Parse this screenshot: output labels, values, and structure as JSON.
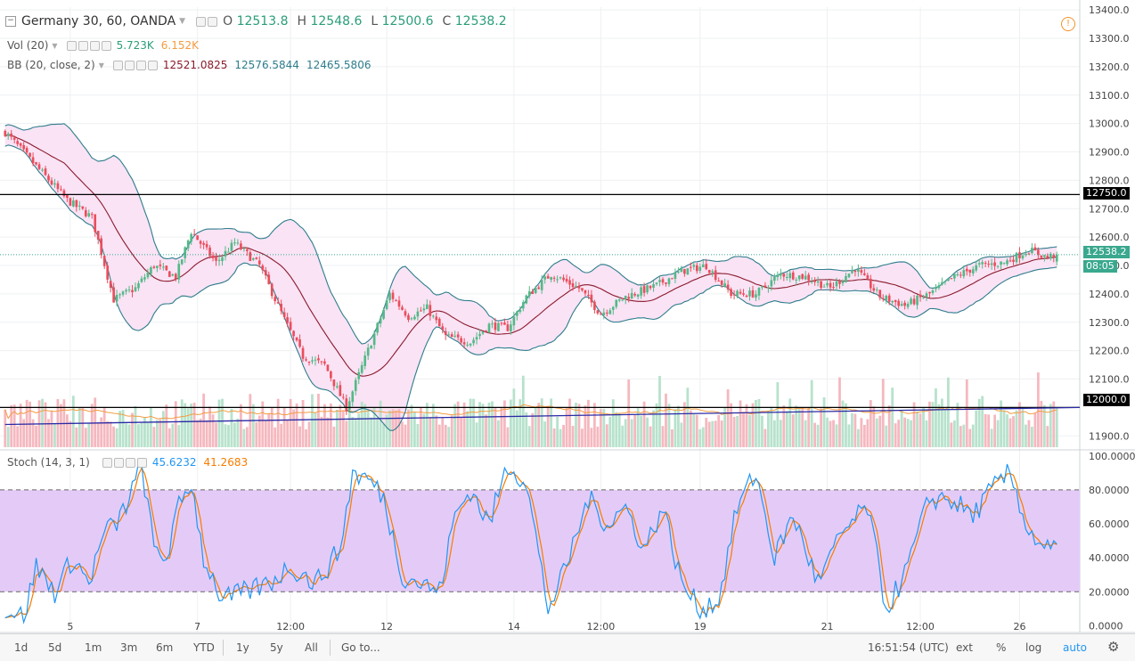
{
  "header": {
    "symbol": "Germany 30, 60, OANDA",
    "ohlc": [
      {
        "k": "O",
        "v": "12513.8"
      },
      {
        "k": "H",
        "v": "12548.6"
      },
      {
        "k": "L",
        "v": "12500.6"
      },
      {
        "k": "C",
        "v": "12538.2"
      }
    ]
  },
  "volume_legend": {
    "label": "Vol (20)",
    "v1": "5.723K",
    "v2": "6.152K"
  },
  "bb_legend": {
    "label": "BB (20, close, 2)",
    "basis": "12521.0825",
    "upper": "12576.5844",
    "lower": "12465.5806"
  },
  "stoch_legend": {
    "label": "Stoch (14, 3, 1)",
    "k": "45.6232",
    "d": "41.2683"
  },
  "price_axis": {
    "ticks": [
      "13400.0",
      "13300.0",
      "13200.0",
      "13100.0",
      "13000.0",
      "12900.0",
      "12800.0",
      "12700.0",
      "12600.0",
      "12500.0",
      "12400.0",
      "12300.0",
      "12200.0",
      "12100.0",
      "11900.0"
    ],
    "tick_values": [
      13400,
      13300,
      13200,
      13100,
      13000,
      12900,
      12800,
      12700,
      12600,
      12500,
      12400,
      12300,
      12200,
      12100,
      11900
    ],
    "range": [
      11860,
      13410
    ]
  },
  "stoch_axis": {
    "ticks": [
      "100.0000",
      "80.0000",
      "60.0000",
      "40.0000",
      "20.0000",
      "0.0000"
    ],
    "tick_values": [
      100,
      80,
      60,
      40,
      20,
      0
    ],
    "range": [
      -4,
      102
    ]
  },
  "badges": {
    "r12750": "12750.0",
    "r12000": "12000.0",
    "last": "12538.2",
    "countdown": "08:05"
  },
  "time_axis": {
    "labels": [
      {
        "t": "5",
        "i": 21
      },
      {
        "t": "7",
        "i": 62
      },
      {
        "t": "12:00",
        "i": 92
      },
      {
        "t": "12",
        "i": 123
      },
      {
        "t": "14",
        "i": 164
      },
      {
        "t": "12:00",
        "i": 192
      },
      {
        "t": "19",
        "i": 224
      },
      {
        "t": "21",
        "i": 265
      },
      {
        "t": "12:00",
        "i": 295
      },
      {
        "t": "26",
        "i": 327
      }
    ],
    "count": 340
  },
  "bottombar": {
    "ranges": [
      "1d",
      "5d",
      "1m",
      "3m",
      "6m",
      "YTD",
      "1y",
      "5y",
      "All"
    ],
    "goto": "Go to...",
    "clock": "16:51:54 (UTC)",
    "toggles": [
      "ext",
      "%",
      "log",
      "auto"
    ]
  },
  "colors": {
    "up": "#53b987",
    "down": "#eb4d5c",
    "bb_band": "#2e7d8c",
    "bb_basis": "#8b1a2b",
    "bb_fill": "#f9e3f5",
    "stoch_k": "#2196f3",
    "stoch_d": "#f57c00",
    "stoch_zone": "#e4cbf7",
    "vol_ma": "#f39c40",
    "trendline": "#2a2aa6",
    "last_price": "#3aa88e"
  },
  "chart_data": {
    "type": "candlestick",
    "instrument": "Germany 30",
    "interval": "60",
    "last_bar": {
      "open": 12513.8,
      "high": 12548.6,
      "low": 12500.6,
      "close": 12538.2
    },
    "horizontal_lines": [
      12750.0,
      12000.0
    ],
    "trendline": {
      "from": {
        "bar": 0,
        "price": 11940
      },
      "to": {
        "bar": 340,
        "price": 12000
      }
    },
    "price_anchors": [
      [
        0,
        12970
      ],
      [
        10,
        12850
      ],
      [
        20,
        12730
      ],
      [
        28,
        12670
      ],
      [
        35,
        12380
      ],
      [
        42,
        12420
      ],
      [
        48,
        12500
      ],
      [
        55,
        12460
      ],
      [
        60,
        12620
      ],
      [
        68,
        12510
      ],
      [
        74,
        12580
      ],
      [
        82,
        12500
      ],
      [
        90,
        12310
      ],
      [
        96,
        12180
      ],
      [
        103,
        12150
      ],
      [
        110,
        12000
      ],
      [
        118,
        12230
      ],
      [
        124,
        12400
      ],
      [
        130,
        12320
      ],
      [
        136,
        12350
      ],
      [
        142,
        12250
      ],
      [
        150,
        12230
      ],
      [
        156,
        12290
      ],
      [
        162,
        12280
      ],
      [
        168,
        12390
      ],
      [
        176,
        12470
      ],
      [
        185,
        12420
      ],
      [
        192,
        12330
      ],
      [
        200,
        12390
      ],
      [
        210,
        12430
      ],
      [
        218,
        12480
      ],
      [
        226,
        12500
      ],
      [
        234,
        12400
      ],
      [
        242,
        12400
      ],
      [
        250,
        12470
      ],
      [
        258,
        12460
      ],
      [
        266,
        12420
      ],
      [
        274,
        12490
      ],
      [
        282,
        12390
      ],
      [
        290,
        12360
      ],
      [
        298,
        12400
      ],
      [
        306,
        12460
      ],
      [
        314,
        12500
      ],
      [
        322,
        12510
      ],
      [
        330,
        12555
      ],
      [
        336,
        12528
      ],
      [
        338,
        12538
      ]
    ],
    "stoch_anchors": [
      [
        0,
        10
      ],
      [
        6,
        5
      ],
      [
        10,
        35
      ],
      [
        16,
        20
      ],
      [
        22,
        40
      ],
      [
        27,
        25
      ],
      [
        32,
        55
      ],
      [
        36,
        60
      ],
      [
        40,
        75
      ],
      [
        44,
        95
      ],
      [
        48,
        45
      ],
      [
        52,
        40
      ],
      [
        56,
        70
      ],
      [
        60,
        85
      ],
      [
        64,
        40
      ],
      [
        70,
        15
      ],
      [
        78,
        20
      ],
      [
        85,
        25
      ],
      [
        92,
        35
      ],
      [
        100,
        25
      ],
      [
        108,
        45
      ],
      [
        112,
        90
      ],
      [
        118,
        85
      ],
      [
        122,
        75
      ],
      [
        128,
        30
      ],
      [
        134,
        25
      ],
      [
        140,
        20
      ],
      [
        145,
        65
      ],
      [
        150,
        80
      ],
      [
        156,
        60
      ],
      [
        162,
        95
      ],
      [
        168,
        85
      ],
      [
        175,
        10
      ],
      [
        180,
        30
      ],
      [
        188,
        75
      ],
      [
        194,
        60
      ],
      [
        200,
        70
      ],
      [
        206,
        45
      ],
      [
        212,
        70
      ],
      [
        218,
        25
      ],
      [
        224,
        10
      ],
      [
        230,
        15
      ],
      [
        236,
        70
      ],
      [
        242,
        90
      ],
      [
        248,
        40
      ],
      [
        254,
        65
      ],
      [
        262,
        25
      ],
      [
        270,
        55
      ],
      [
        278,
        70
      ],
      [
        284,
        10
      ],
      [
        290,
        30
      ],
      [
        298,
        75
      ],
      [
        304,
        75
      ],
      [
        312,
        65
      ],
      [
        318,
        80
      ],
      [
        324,
        90
      ],
      [
        330,
        55
      ],
      [
        336,
        45
      ]
    ],
    "x_labels": [
      "5",
      "7",
      "12:00",
      "12",
      "14",
      "12:00",
      "19",
      "21",
      "12:00",
      "26"
    ],
    "ylim": [
      11860,
      13410
    ]
  }
}
